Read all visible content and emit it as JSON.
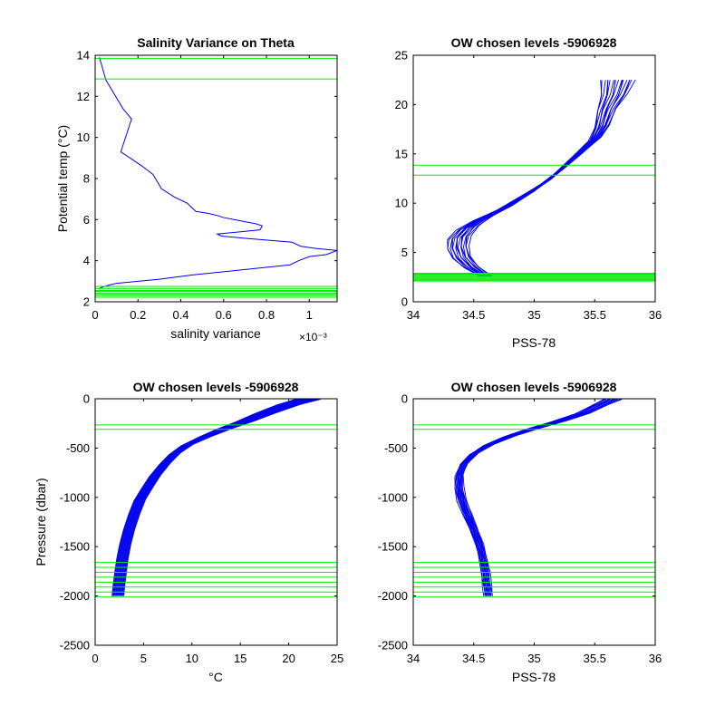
{
  "colors": {
    "profile": "#0000ee",
    "level": "#00ee00",
    "axis": "#000000",
    "background": "#ffffff"
  },
  "chart_data": [
    {
      "id": "p1",
      "type": "line",
      "title": "Salinity Variance on Theta",
      "xlabel": "salinity variance",
      "ylabel": "Potential temp (°C)",
      "x_exponent": "×10⁻³",
      "xlim": [
        0,
        1.13
      ],
      "ylim": [
        2,
        14
      ],
      "xticks": [
        0,
        0.2,
        0.4,
        0.6,
        0.8,
        1
      ],
      "xtick_labels": [
        "0",
        "0.2",
        "0.4",
        "0.6",
        "0.8",
        "1"
      ],
      "yticks": [
        2,
        4,
        6,
        8,
        10,
        12,
        14
      ],
      "ytick_labels": [
        "2",
        "4",
        "6",
        "8",
        "10",
        "12",
        "14"
      ],
      "series": [
        {
          "x": [
            0.02,
            0.05,
            0.13,
            0.17,
            0.12,
            0.22,
            0.27,
            0.31,
            0.37,
            0.43,
            0.47,
            0.53,
            0.57,
            0.6,
            0.75,
            0.78,
            0.77,
            0.57,
            0.59,
            0.69,
            0.92,
            0.96,
            1.03,
            1.13,
            1.08,
            1.0,
            0.95,
            0.91,
            0.45,
            0.3,
            0.2,
            0.15,
            0.1,
            0.06,
            0.03,
            0.02,
            0.02
          ],
          "y": [
            13.9,
            12.8,
            11.4,
            10.9,
            9.3,
            8.6,
            8.2,
            7.5,
            7.1,
            6.8,
            6.4,
            6.3,
            6.2,
            6.1,
            5.8,
            5.7,
            5.5,
            5.3,
            5.2,
            5.1,
            4.9,
            4.7,
            4.6,
            4.5,
            4.3,
            4.2,
            4.0,
            3.8,
            3.3,
            3.1,
            3.0,
            2.95,
            2.9,
            2.8,
            2.7,
            2.65,
            2.6
          ]
        }
      ],
      "hlines": [
        13.85,
        12.85,
        2.75,
        2.65,
        2.55,
        2.5,
        2.43,
        2.37,
        2.3,
        2.22
      ]
    },
    {
      "id": "p2",
      "type": "line",
      "title": "OW chosen levels -5906928",
      "xlabel": "PSS-78",
      "ylabel": "",
      "xlim": [
        34,
        36
      ],
      "ylim": [
        0,
        25
      ],
      "xticks": [
        34,
        34.5,
        35,
        35.5,
        36
      ],
      "xtick_labels": [
        "34",
        "34.5",
        "35",
        "35.5",
        "36"
      ],
      "yticks": [
        0,
        5,
        10,
        15,
        20,
        25
      ],
      "ytick_labels": [
        "0",
        "5",
        "10",
        "15",
        "20",
        "25"
      ],
      "profile_base": {
        "x": [
          34.6,
          34.48,
          34.4,
          34.37,
          34.38,
          34.45,
          34.58,
          34.75,
          34.95,
          35.1,
          35.2,
          35.35,
          35.5,
          35.56,
          35.6,
          35.66,
          35.69
        ],
        "y": [
          2.6,
          3.5,
          4.5,
          5.5,
          6.5,
          7.5,
          8.5,
          9.5,
          11.0,
          12.2,
          13.2,
          14.8,
          16.5,
          17.8,
          19.5,
          21.0,
          22.5
        ]
      },
      "hlines": [
        13.85,
        12.85,
        2.9,
        2.8,
        2.7,
        2.6,
        2.5,
        2.4,
        2.3,
        2.2,
        2.1
      ]
    },
    {
      "id": "p3",
      "type": "line",
      "title": "OW chosen levels -5906928",
      "xlabel": "°C",
      "ylabel": "Pressure (dbar)",
      "xlim": [
        0,
        25
      ],
      "ylim": [
        -2500,
        0
      ],
      "xticks": [
        0,
        5,
        10,
        15,
        20,
        25
      ],
      "xtick_labels": [
        "0",
        "5",
        "10",
        "15",
        "20",
        "25"
      ],
      "yticks": [
        -2500,
        -2000,
        -1500,
        -1000,
        -500,
        0
      ],
      "ytick_labels": [
        "-2500",
        "-2000",
        "-1500",
        "-1000",
        "-500",
        "0"
      ],
      "profile_base": {
        "x": [
          22.0,
          20.0,
          17.5,
          15.5,
          13.5,
          11.5,
          9.5,
          8.2,
          7.2,
          6.2,
          5.4,
          4.6,
          4.0,
          3.5,
          3.1,
          2.8,
          2.6,
          2.45,
          2.35
        ],
        "y": [
          -5,
          -60,
          -150,
          -230,
          -300,
          -380,
          -470,
          -560,
          -660,
          -780,
          -900,
          -1030,
          -1180,
          -1330,
          -1480,
          -1630,
          -1780,
          -1900,
          -2000
        ]
      },
      "hlines": [
        -265,
        -310,
        -1660,
        -1710,
        -1760,
        -1810,
        -1860,
        -1910,
        -1960,
        -2010
      ]
    },
    {
      "id": "p4",
      "type": "line",
      "title": "OW chosen levels -5906928",
      "xlabel": "PSS-78",
      "ylabel": "",
      "xlim": [
        34,
        36
      ],
      "ylim": [
        -2500,
        0
      ],
      "xticks": [
        34,
        34.5,
        35,
        35.5,
        36
      ],
      "xtick_labels": [
        "34",
        "34.5",
        "35",
        "35.5",
        "36"
      ],
      "yticks": [
        -2500,
        -2000,
        -1500,
        -1000,
        -500,
        0
      ],
      "ytick_labels": [
        "-2500",
        "-2000",
        "-1500",
        "-1000",
        "-500",
        "0"
      ],
      "profile_base": {
        "x": [
          35.65,
          35.55,
          35.4,
          35.2,
          35.0,
          34.8,
          34.62,
          34.5,
          34.42,
          34.38,
          34.38,
          34.4,
          34.45,
          34.5,
          34.55,
          34.58,
          34.6,
          34.61,
          34.62
        ],
        "y": [
          -5,
          -60,
          -150,
          -230,
          -300,
          -380,
          -470,
          -560,
          -660,
          -780,
          -900,
          -1030,
          -1180,
          -1330,
          -1480,
          -1630,
          -1780,
          -1900,
          -2000
        ]
      },
      "hlines": [
        -265,
        -310,
        -1660,
        -1710,
        -1760,
        -1810,
        -1860,
        -1910,
        -1960,
        -2010
      ]
    }
  ]
}
